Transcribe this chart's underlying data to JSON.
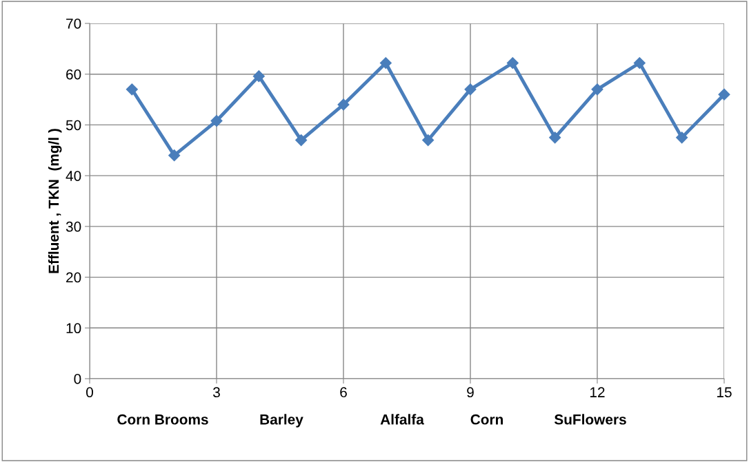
{
  "chart_data": {
    "type": "line",
    "ylabel": "Effluent , TKN  (mg/l )",
    "x": [
      1,
      2,
      3,
      4,
      5,
      6,
      7,
      8,
      9,
      10,
      11,
      12,
      13,
      14,
      15
    ],
    "series": [
      {
        "color": "#4a7ebb",
        "values": [
          57,
          44,
          50.8,
          59.6,
          47,
          54,
          62.2,
          47,
          57,
          62.2,
          47.5,
          57,
          62.2,
          47.5,
          56
        ]
      }
    ],
    "xlim": [
      0,
      15
    ],
    "xticks": [
      0,
      3,
      6,
      9,
      12,
      15
    ],
    "ylim": [
      0,
      70
    ],
    "yticks": [
      0,
      10,
      20,
      30,
      40,
      50,
      60,
      70
    ],
    "grid": true,
    "marker": "diamond",
    "line_style": "solid",
    "legend": false,
    "annotations": [
      "Corn Brooms",
      "Barley",
      "Alfalfa",
      "Corn",
      "SuFlowers"
    ]
  }
}
